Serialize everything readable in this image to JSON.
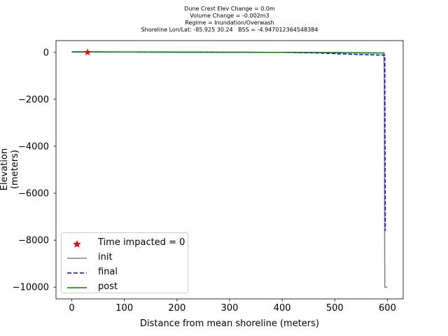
{
  "chart_data": {
    "type": "line",
    "title_lines": [
      "Dune Crest Elev Change = 0.0m",
      "Volume Change = -0.002m3",
      "Regime = Inundation/Overwash",
      "Shoreline Lon/Lat: -85.925 30.24   BSS = -4.947012364548384"
    ],
    "xlabel": "Distance from mean shoreline (meters)",
    "ylabel": "Elevation (meters)",
    "xlim": [
      -30,
      630
    ],
    "ylim": [
      -10500,
      500
    ],
    "xticks": [
      0,
      100,
      200,
      300,
      400,
      500,
      600
    ],
    "yticks": [
      0,
      -2000,
      -4000,
      -6000,
      -8000,
      -10000
    ],
    "ytick_labels": [
      "0",
      "−2000",
      "−4000",
      "−6000",
      "−8000",
      "−10000"
    ],
    "grid": false,
    "legend_position": "lower-left",
    "series": [
      {
        "name": "Time impacted = 0",
        "style": "marker-star",
        "color": "#ff0000",
        "x": [
          30
        ],
        "y": [
          0
        ]
      },
      {
        "name": "init",
        "style": "solid",
        "color": "#808080",
        "x": [
          0,
          100,
          200,
          300,
          400,
          500,
          593,
          594,
          595,
          600
        ],
        "y": [
          20,
          15,
          10,
          5,
          0,
          -10,
          -30,
          -1000,
          -10000,
          -10000
        ]
      },
      {
        "name": "final",
        "style": "dashed",
        "color": "#0000ff",
        "x": [
          0,
          100,
          200,
          300,
          400,
          470,
          520,
          560,
          595,
          596
        ],
        "y": [
          20,
          15,
          10,
          5,
          0,
          -30,
          -70,
          -100,
          -120,
          -7600
        ]
      },
      {
        "name": "post",
        "style": "solid",
        "color": "#008000",
        "x": [
          0,
          100,
          200,
          300,
          400,
          500,
          595
        ],
        "y": [
          20,
          15,
          10,
          5,
          0,
          -10,
          -30
        ]
      }
    ]
  }
}
